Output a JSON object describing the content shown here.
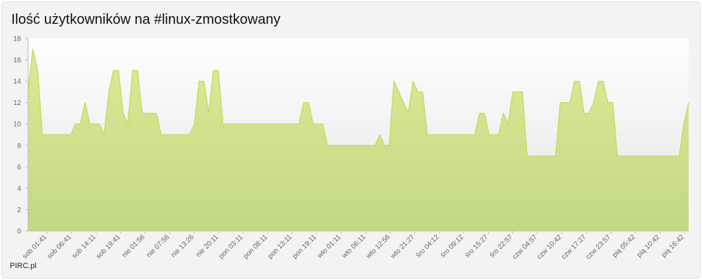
{
  "title": "Ilość użytkowników na #linux-zmostkowany",
  "credit": "PIRC.pl",
  "colors": {
    "area_top": "#dcea97",
    "area_bottom": "#c2d882",
    "line": "#bfe25a",
    "plot_top": "#ffffff",
    "plot_bottom": "#e3e3e3",
    "frame": "#f3f3f3"
  },
  "chart_data": {
    "type": "area",
    "title": "Ilość użytkowników na #linux-zmostkowany",
    "xlabel": "",
    "ylabel": "",
    "ylim": [
      0,
      18
    ],
    "yticks": [
      0,
      2,
      4,
      6,
      8,
      10,
      12,
      14,
      16,
      18
    ],
    "grid": false,
    "legend": "none",
    "xtick_labels": [
      "sob 01:41",
      "sob 06:41",
      "sob 14:11",
      "sob 19:41",
      "nie 01:56",
      "nie 07:56",
      "nie 13:26",
      "nie 20:11",
      "pon 03:11",
      "pon 08:11",
      "pon 13:11",
      "pon 19:11",
      "wto 01:11",
      "wto 06:11",
      "wto 12:56",
      "wto 21:27",
      "śro 04:12",
      "śro 09:12",
      "śro 15:27",
      "śro 22:57",
      "czw 04:57",
      "czw 10:42",
      "czw 17:27",
      "czw 23:57",
      "pią 05:42",
      "pią 10:42",
      "pią 16:42"
    ],
    "values": [
      13,
      17,
      15,
      9,
      9,
      9,
      9,
      9,
      9,
      9,
      10,
      10,
      12,
      10,
      10,
      10,
      9,
      13,
      15,
      15,
      11,
      10,
      15,
      15,
      11,
      11,
      11,
      11,
      9,
      9,
      9,
      9,
      9,
      9,
      9,
      10,
      14,
      14,
      11,
      15,
      15,
      10,
      10,
      10,
      10,
      10,
      10,
      10,
      10,
      10,
      10,
      10,
      10,
      10,
      10,
      10,
      10,
      10,
      12,
      12,
      10,
      10,
      10,
      8,
      8,
      8,
      8,
      8,
      8,
      8,
      8,
      8,
      8,
      8,
      9,
      8,
      8,
      14,
      13,
      12,
      11,
      14,
      13,
      13,
      9,
      9,
      9,
      9,
      9,
      9,
      9,
      9,
      9,
      9,
      9,
      11,
      11,
      9,
      9,
      9,
      11,
      10,
      13,
      13,
      13,
      7,
      7,
      7,
      7,
      7,
      7,
      7,
      12,
      12,
      12,
      14,
      14,
      11,
      11,
      12,
      14,
      14,
      12,
      12,
      7,
      7,
      7,
      7,
      7,
      7,
      7,
      7,
      7,
      7,
      7,
      7,
      7,
      7,
      10,
      12
    ]
  }
}
